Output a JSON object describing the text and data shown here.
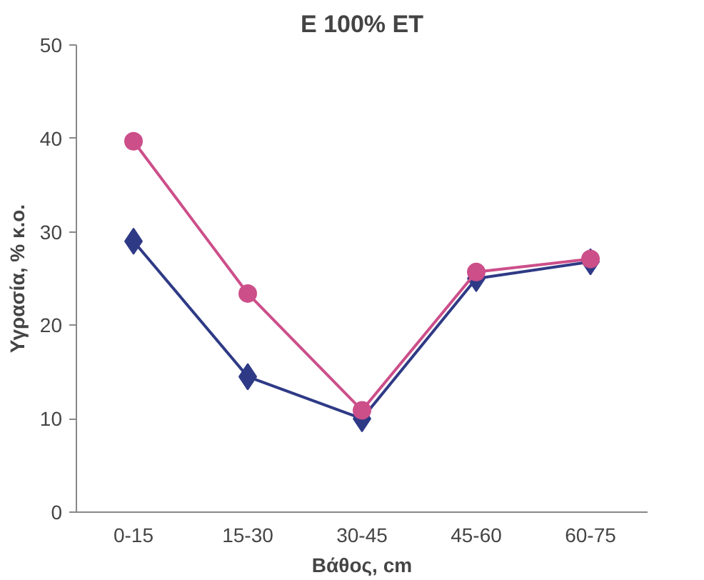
{
  "chart_data": {
    "type": "line",
    "title": "E 100% ET",
    "xlabel": "Βάθος, cm",
    "ylabel": "Υγρασία, % κ.ο.",
    "categories": [
      "0-15",
      "15-30",
      "30-45",
      "45-60",
      "60-75"
    ],
    "series": [
      {
        "color": "#2f3a86",
        "marker": "diamond",
        "values": [
          29,
          14.5,
          10,
          25,
          26.8
        ]
      },
      {
        "color": "#cc4f8a",
        "marker": "circle",
        "values": [
          39.7,
          23.4,
          10.9,
          25.7,
          27.1
        ]
      }
    ],
    "ylim": [
      0,
      50
    ],
    "yticks": [
      0,
      10,
      20,
      30,
      40,
      50
    ],
    "grid": false
  }
}
